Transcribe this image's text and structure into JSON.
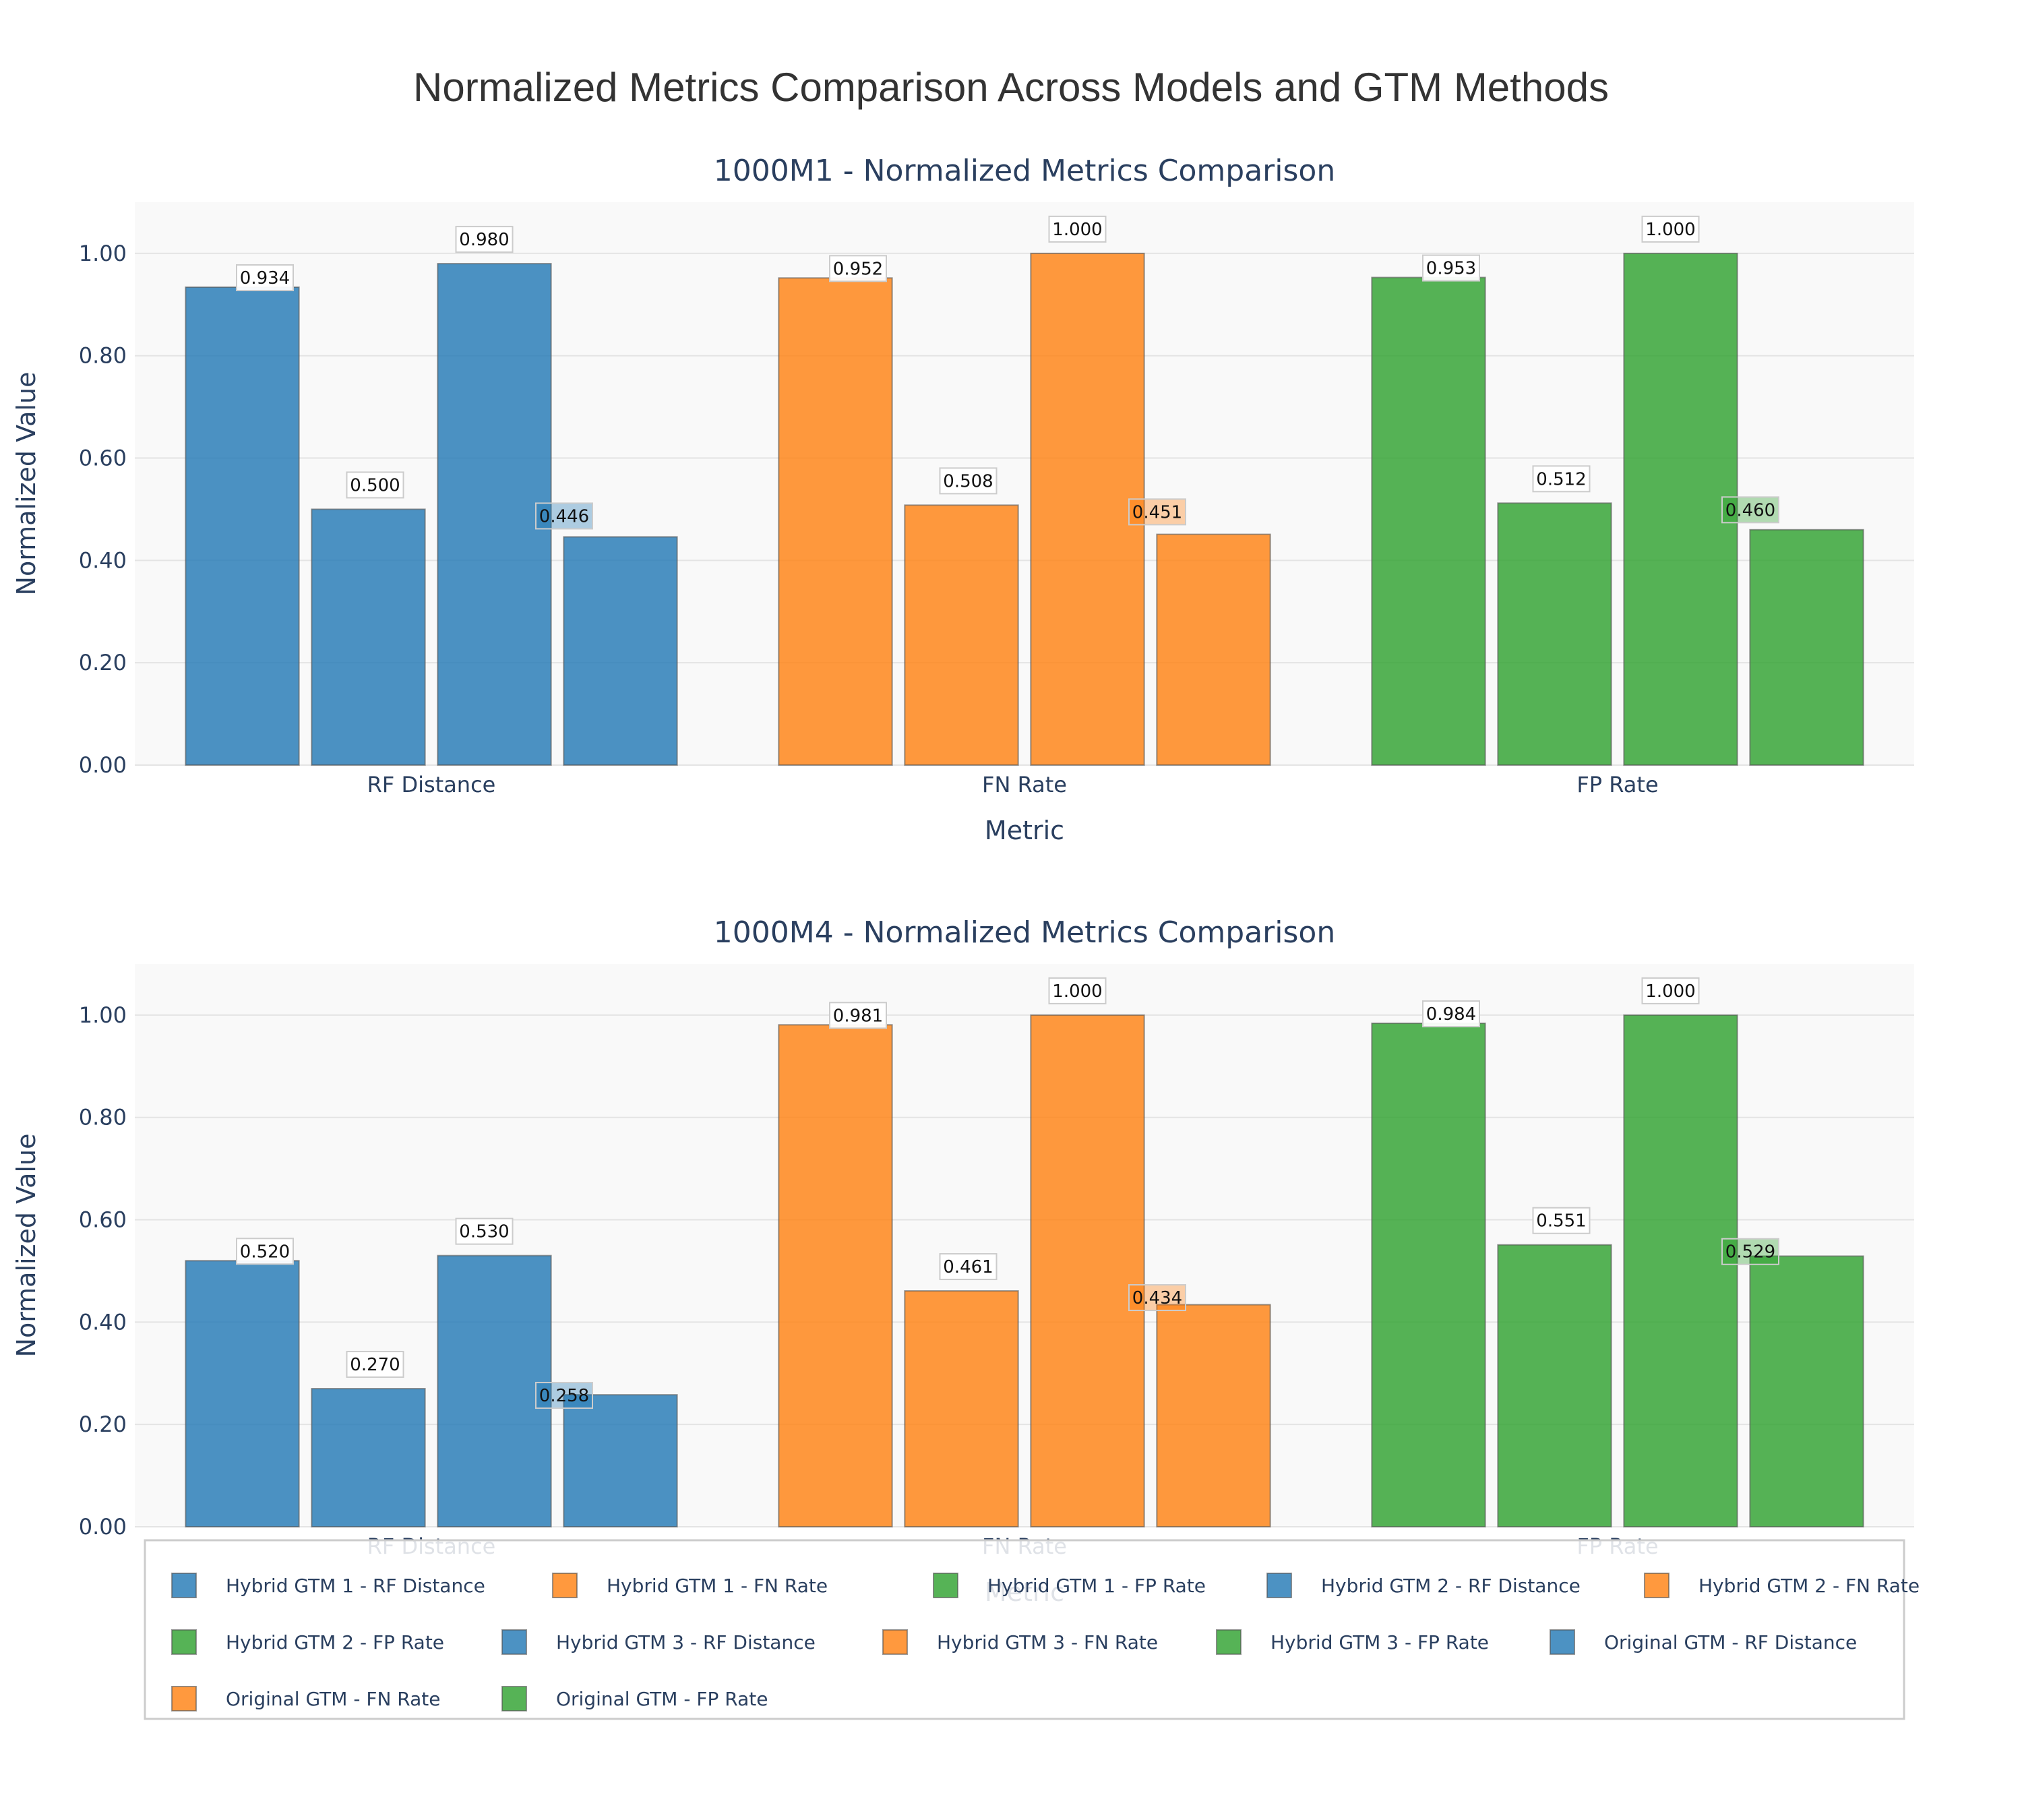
{
  "title": "Normalized Metrics Comparison Across Models and GTM Methods",
  "colors": {
    "RF Distance": "#1f77b4",
    "FN Rate": "#ff7f0e",
    "FP Rate": "#2ca02c"
  },
  "chart_data": [
    {
      "type": "bar",
      "title": "1000M1 - Normalized Metrics Comparison",
      "xlabel": "Metric",
      "ylabel": "Normalized Value",
      "ylim": [
        0,
        1.1
      ],
      "y_ticks": [
        "0.00",
        "0.20",
        "0.40",
        "0.60",
        "0.80",
        "1.00"
      ],
      "categories": [
        "RF Distance",
        "FN Rate",
        "FP Rate"
      ],
      "methods": [
        "Hybrid GTM 1",
        "Hybrid GTM 2",
        "Hybrid GTM 3",
        "Original GTM"
      ],
      "values": {
        "RF Distance": [
          0.934,
          0.5,
          0.98,
          0.446
        ],
        "FN Rate": [
          0.952,
          0.508,
          1.0,
          0.451
        ],
        "FP Rate": [
          0.953,
          0.512,
          1.0,
          0.46
        ]
      },
      "labels": {
        "RF Distance": [
          "0.934",
          "0.500",
          "0.980",
          "0.446"
        ],
        "FN Rate": [
          "0.952",
          "0.508",
          "1.000",
          "0.451"
        ],
        "FP Rate": [
          "0.953",
          "0.512",
          "1.000",
          "0.460"
        ]
      }
    },
    {
      "type": "bar",
      "title": "1000M4 - Normalized Metrics Comparison",
      "xlabel": "Metric",
      "ylabel": "Normalized Value",
      "ylim": [
        0,
        1.1
      ],
      "y_ticks": [
        "0.00",
        "0.20",
        "0.40",
        "0.60",
        "0.80",
        "1.00"
      ],
      "categories": [
        "RF Distance",
        "FN Rate",
        "FP Rate"
      ],
      "methods": [
        "Hybrid GTM 1",
        "Hybrid GTM 2",
        "Hybrid GTM 3",
        "Original GTM"
      ],
      "values": {
        "RF Distance": [
          0.52,
          0.27,
          0.53,
          0.258
        ],
        "FN Rate": [
          0.981,
          0.461,
          1.0,
          0.434
        ],
        "FP Rate": [
          0.984,
          0.551,
          1.0,
          0.529
        ]
      },
      "labels": {
        "RF Distance": [
          "0.520",
          "0.270",
          "0.530",
          "0.258"
        ],
        "FN Rate": [
          "0.981",
          "0.461",
          "1.000",
          "0.434"
        ],
        "FP Rate": [
          "0.984",
          "0.551",
          "1.000",
          "0.529"
        ]
      }
    }
  ],
  "legend": {
    "placement": "bottom",
    "items": [
      "Hybrid GTM 1 - RF Distance",
      "Hybrid GTM 1 - FN Rate",
      "Hybrid GTM 1 - FP Rate",
      "Hybrid GTM 2 - RF Distance",
      "Hybrid GTM 2 - FN Rate",
      "Hybrid GTM 2 - FP Rate",
      "Hybrid GTM 3 - RF Distance",
      "Hybrid GTM 3 - FN Rate",
      "Hybrid GTM 3 - FP Rate",
      "Original GTM - RF Distance",
      "Original GTM - FN Rate",
      "Original GTM - FP Rate"
    ]
  }
}
